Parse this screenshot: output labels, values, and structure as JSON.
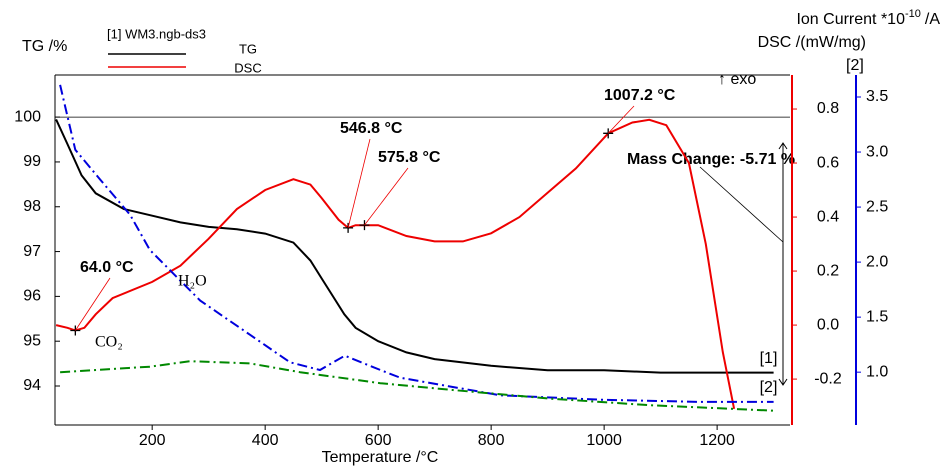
{
  "chart_data": {
    "type": "line",
    "x_label": "Temperature /°C",
    "y_label": "TG /%",
    "y2_label": "DSC /(mW/mg)",
    "y3_label": {
      "base": "Ion Current *10",
      "sup": "-10",
      "unit": "/A"
    },
    "y3_tag": "[2]",
    "exo_label": "↑ exo",
    "legend_title": "[1] WM3.ngb-ds3",
    "xlim": [
      28,
      1329
    ],
    "xticks": [
      200,
      400,
      600,
      800,
      1000,
      1200
    ],
    "ylim": [
      93.13,
      100.94
    ],
    "yticks": [
      94,
      95,
      96,
      97,
      98,
      99,
      100
    ],
    "y2lim": [
      -0.37,
      0.926
    ],
    "y2ticks": [
      -0.2,
      {
        "value": 0,
        "label": "0.0"
      },
      0.2,
      0.4,
      0.6,
      0.8
    ],
    "y3lim": [
      0.52,
      3.7
    ],
    "y3ticks": [
      {
        "value": 1,
        "label": "1.0"
      },
      1.5,
      {
        "value": 2,
        "label": "2.0"
      },
      2.5,
      {
        "value": 3,
        "label": "3.0"
      },
      3.5
    ],
    "reference_line": 100,
    "series": [
      {
        "name": "TG",
        "color": "#000000",
        "axis": "y",
        "tag": "[1]",
        "legend": true,
        "x": [
          30,
          50,
          75,
          100,
          150,
          200,
          250,
          300,
          350,
          400,
          450,
          480,
          500,
          520,
          540,
          560,
          600,
          650,
          700,
          800,
          900,
          1000,
          1100,
          1200,
          1300
        ],
        "values": [
          99.95,
          99.4,
          98.7,
          98.3,
          97.95,
          97.8,
          97.65,
          97.55,
          97.5,
          97.4,
          97.2,
          96.8,
          96.4,
          96.0,
          95.6,
          95.3,
          95.0,
          94.75,
          94.6,
          94.45,
          94.35,
          94.35,
          94.3,
          94.3,
          94.3
        ]
      },
      {
        "name": "DSC",
        "color": "#ee0000",
        "axis": "y2",
        "legend": true,
        "x": [
          30,
          50,
          64,
          80,
          100,
          130,
          200,
          250,
          300,
          350,
          400,
          450,
          480,
          500,
          530,
          546.8,
          560,
          575.8,
          600,
          650,
          700,
          750,
          800,
          850,
          900,
          950,
          1007.2,
          1050,
          1080,
          1110,
          1150,
          1180,
          1210,
          1230
        ],
        "values": [
          0.0,
          -0.01,
          -0.02,
          -0.01,
          0.04,
          0.1,
          0.16,
          0.22,
          0.32,
          0.43,
          0.5,
          0.54,
          0.52,
          0.47,
          0.39,
          0.36,
          0.37,
          0.37,
          0.37,
          0.33,
          0.31,
          0.31,
          0.34,
          0.4,
          0.49,
          0.58,
          0.71,
          0.75,
          0.76,
          0.74,
          0.6,
          0.3,
          -0.1,
          -0.31
        ]
      },
      {
        "name": "H₂O",
        "color": "#0000dd",
        "axis": "y3",
        "tag": "[2]",
        "legend": false,
        "x": [
          37,
          64,
          108,
          161,
          196,
          285,
          373,
          444,
          497,
          541,
          604,
          639,
          816,
          993,
          1170,
          1300
        ],
        "values": [
          3.61,
          3.02,
          2.75,
          2.43,
          2.11,
          1.65,
          1.34,
          1.09,
          1.02,
          1.15,
          1.02,
          0.95,
          0.79,
          0.75,
          0.73,
          0.73
        ]
      },
      {
        "name": "CO₂",
        "color": "#008800",
        "axis": "y3",
        "legend": false,
        "x": [
          37,
          196,
          267,
          373,
          462,
          604,
          728,
          904,
          1081,
          1300
        ],
        "values": [
          1.0,
          1.05,
          1.1,
          1.08,
          1.0,
          0.9,
          0.84,
          0.76,
          0.7,
          0.65
        ]
      }
    ],
    "annotations": [
      {
        "text": "64.0 °C",
        "x": 64,
        "y": -0.02
      },
      {
        "text": "546.8 °C",
        "x": 546.8,
        "y": 0.36
      },
      {
        "text": "575.8 °C",
        "x": 575.8,
        "y": 0.37
      },
      {
        "text": "1007.2 °C",
        "x": 1007.2,
        "y": 0.71
      }
    ],
    "mass_change": "Mass Change: -5.71 %"
  }
}
